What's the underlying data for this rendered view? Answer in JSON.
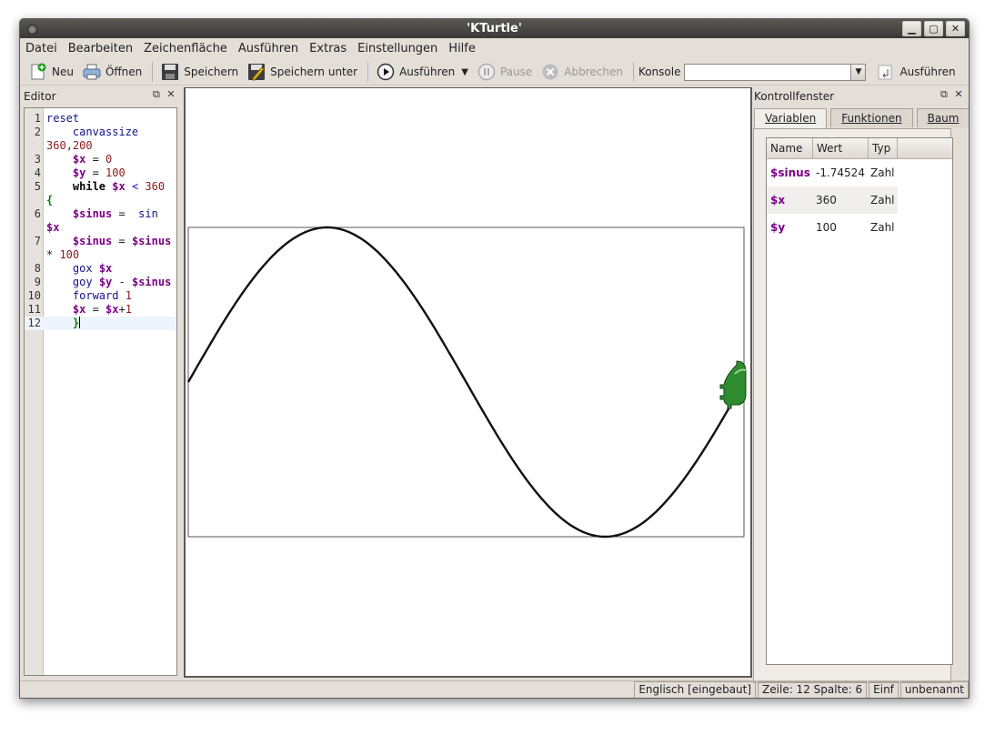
{
  "window": {
    "title": "'KTurtle'"
  },
  "menu": [
    "Datei",
    "Bearbeiten",
    "Zeichenfläche",
    "Ausführen",
    "Extras",
    "Einstellungen",
    "Hilfe"
  ],
  "toolbar": {
    "new": "Neu",
    "open": "Öffnen",
    "save": "Speichern",
    "save_as": "Speichern unter",
    "run": "Ausführen",
    "pause": "Pause",
    "abort": "Abbrechen",
    "console_label": "Konsole",
    "console_value": "",
    "console_run": "Ausführen"
  },
  "editor": {
    "title": "Editor",
    "lines": [
      {
        "n": "1",
        "html": "<span class=\"kw\">reset</span>"
      },
      {
        "n": "2",
        "html": "    <span class=\"kw\">canvassize</span>"
      },
      {
        "n": "",
        "html": "<span class=\"num\">360</span>,<span class=\"num\">200</span>"
      },
      {
        "n": "3",
        "html": "    <span class=\"var\">$x</span> = <span class=\"num\">0</span>"
      },
      {
        "n": "4",
        "html": "    <span class=\"var\">$y</span> = <span class=\"num\">100</span>"
      },
      {
        "n": "5",
        "html": "    <span class=\"kwb\">while</span> <span class=\"var\">$x</span> <span class=\"cmp\">&lt;</span> <span class=\"num\">360</span>"
      },
      {
        "n": "",
        "html": "<span class=\"br\">{</span>"
      },
      {
        "n": "6",
        "html": "    <span class=\"var\">$sinus</span> =  <span class=\"kw\">sin</span>"
      },
      {
        "n": "",
        "html": "<span class=\"var\">$x</span>"
      },
      {
        "n": "7",
        "html": "    <span class=\"var\">$sinus</span> = <span class=\"var\">$sinus</span>"
      },
      {
        "n": "",
        "html": "* <span class=\"num\">100</span>"
      },
      {
        "n": "8",
        "html": "    <span class=\"kw\">gox</span> <span class=\"var\">$x</span>"
      },
      {
        "n": "9",
        "html": "    <span class=\"kw\">goy</span> <span class=\"var\">$y</span> - <span class=\"var\">$sinus</span>"
      },
      {
        "n": "10",
        "html": "    <span class=\"kw\">forward</span> <span class=\"num\">1</span>"
      },
      {
        "n": "11",
        "html": "    <span class=\"var\">$x</span> = <span class=\"var\">$x</span>+<span class=\"num\">1</span>"
      },
      {
        "n": "12",
        "html": "    <span class=\"br\">}</span><span class=\"caret\"></span>",
        "current": true
      }
    ]
  },
  "inspector": {
    "title": "Kontrollfenster",
    "tabs": [
      "Variablen",
      "Funktionen",
      "Baum"
    ],
    "columns": [
      "Name",
      "Wert",
      "Typ"
    ],
    "rows": [
      {
        "name": "$sinus",
        "value": "-1.74524",
        "type": "Zahl"
      },
      {
        "name": "$x",
        "value": "360",
        "type": "Zahl"
      },
      {
        "name": "$y",
        "value": "100",
        "type": "Zahl"
      }
    ]
  },
  "canvas": {
    "canvassize": [
      360,
      200
    ],
    "curve": {
      "amplitude": 100,
      "y_offset": 100,
      "x_start": 0,
      "x_end": 360
    }
  },
  "status": {
    "language": "Englisch [eingebaut]",
    "position": "Zeile: 12 Spalte: 6",
    "mode": "Einf",
    "file": "unbenannt"
  },
  "colors": {
    "titlebar": "#3b3936",
    "window_bg": "#e3ded8",
    "variable": "#7a0087",
    "keyword": "#141487",
    "number": "#8a1a1a",
    "turtle": "#2e8b2e"
  }
}
